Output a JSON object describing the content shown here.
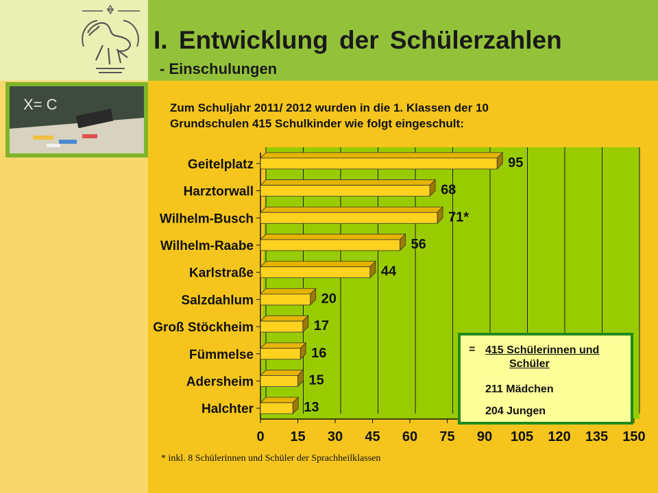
{
  "header": {
    "title": "I.  Entwicklung der Schülerzahlen",
    "subtitle": "- Einschulungen"
  },
  "intro": {
    "line1": "Zum Schuljahr 2011/ 2012 wurden in die 1. Klassen der 10",
    "line2": "Grundschulen 415 Schulkinder wie folgt eingeschult:"
  },
  "summary": {
    "eq": "=",
    "total_line1": "415 Schülerinnen und",
    "total_line2": "Schüler",
    "girls": "211 Mädchen",
    "boys": "204 Jungen"
  },
  "footnote": "* inkl. 8 Schülerinnen und Schüler der Sprachheilklassen",
  "colors": {
    "bar_front": "#ffd21f",
    "bar_top": "#e6b400",
    "bar_side": "#9e7a00",
    "plot_bg": "#99cc00",
    "background": "#f5c51d",
    "header_green": "#93c23a",
    "frame_green": "#1f8a1f"
  },
  "logo": {
    "icon": "horse-crest-icon"
  },
  "photo": {
    "icon": "chalkboard-photo"
  },
  "chart_data": {
    "type": "bar",
    "orientation": "horizontal",
    "categories": [
      "Geitelplatz",
      "Harztorwall",
      "Wilhelm-Busch",
      "Wilhelm-Raabe",
      "Karlstraße",
      "Salzdahlum",
      "Groß Stöckheim",
      "Fümmelse",
      "Adersheim",
      "Halchter"
    ],
    "values": [
      95,
      68,
      71,
      56,
      44,
      20,
      17,
      16,
      15,
      13
    ],
    "value_labels": [
      "95",
      "68",
      "71*",
      "56",
      "44",
      "20",
      "17",
      "16",
      "15",
      "13"
    ],
    "xlim": [
      0,
      150
    ],
    "xticks": [
      "0",
      "15",
      "30",
      "45",
      "60",
      "75",
      "90",
      "105",
      "120",
      "135",
      "150"
    ],
    "grid": "vertical",
    "legend": "none"
  }
}
